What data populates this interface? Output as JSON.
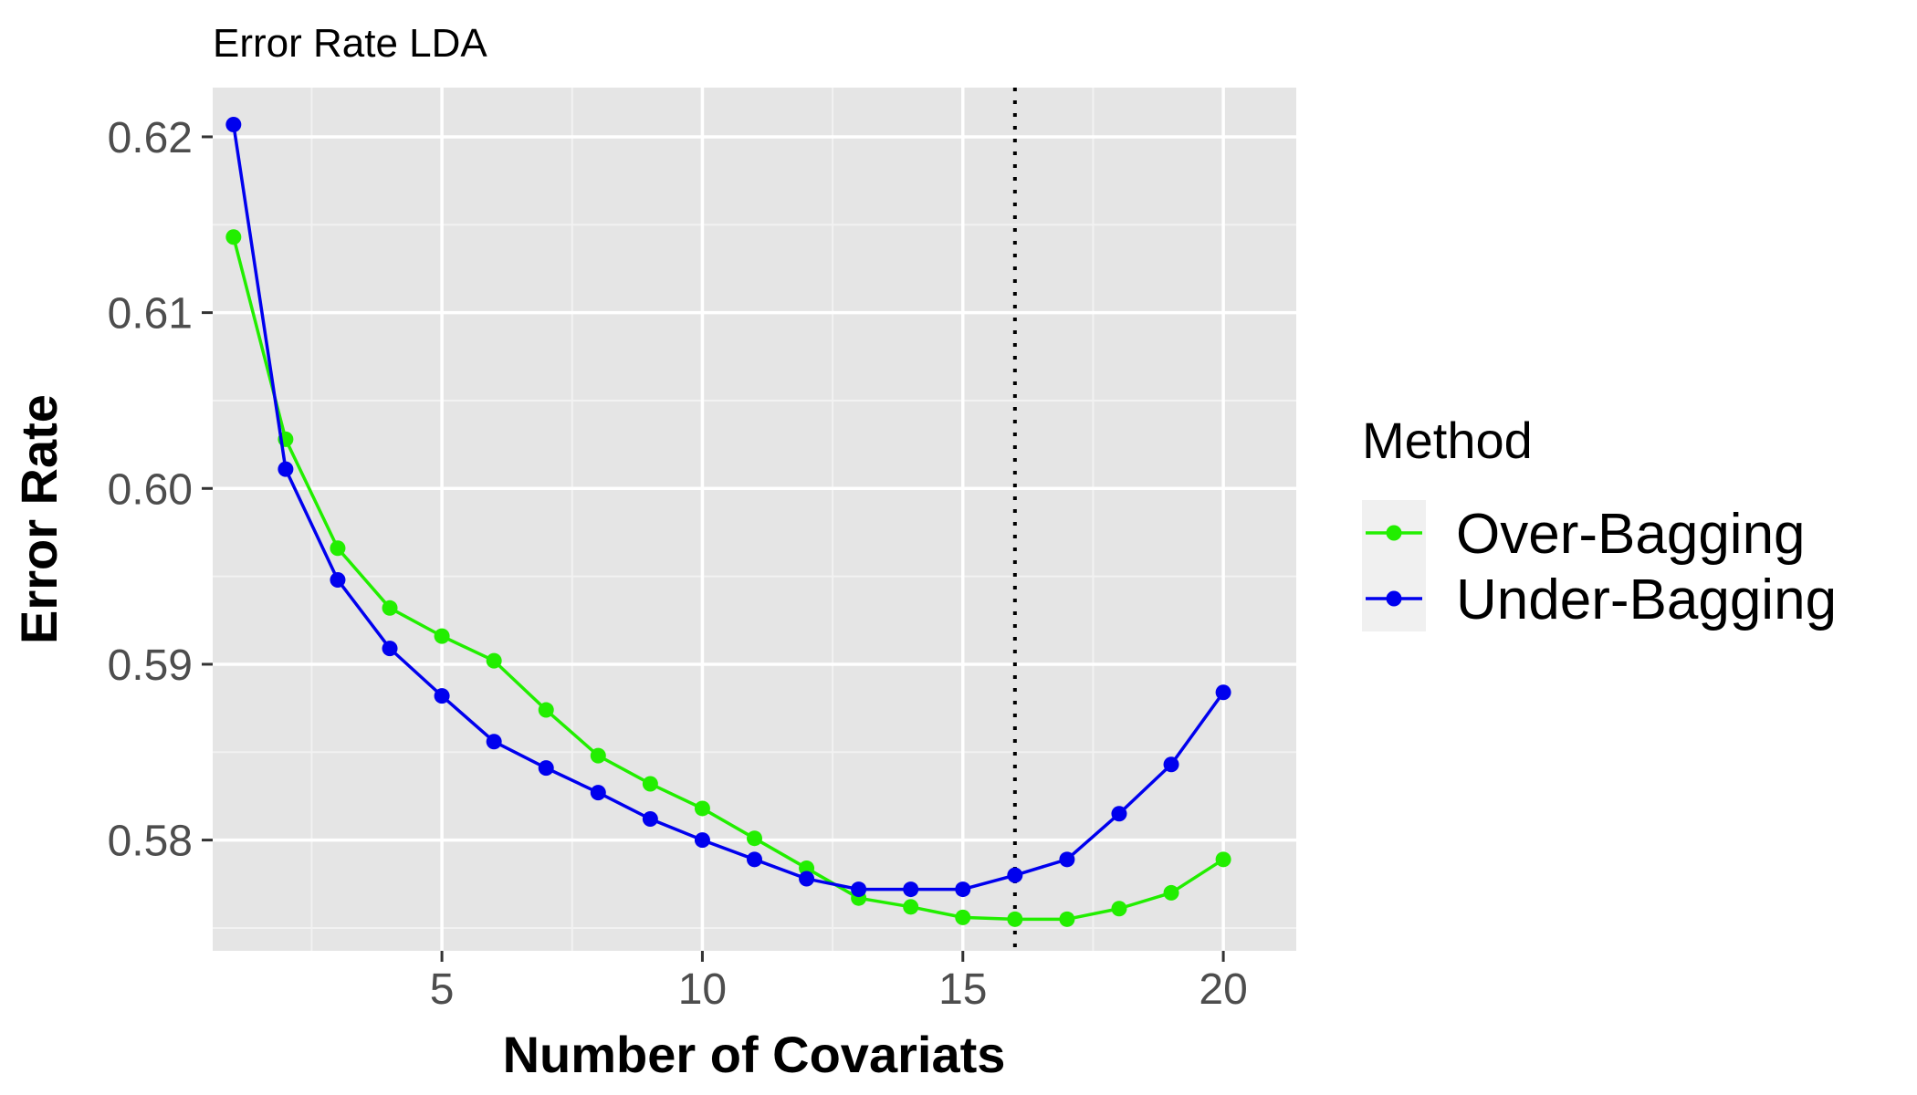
{
  "chart_data": {
    "type": "line",
    "title": "Error Rate LDA",
    "xlabel": "Number of Covariats",
    "ylabel": "Error Rate",
    "xlim": [
      0.6,
      21.4
    ],
    "ylim": [
      0.5737,
      0.6228
    ],
    "x_ticks": [
      5,
      10,
      15,
      20
    ],
    "x_tick_labels": [
      "5",
      "10",
      "15",
      "20"
    ],
    "x_minor_ticks": [
      2.5,
      7.5,
      12.5,
      17.5
    ],
    "y_ticks": [
      0.58,
      0.59,
      0.6,
      0.61,
      0.62
    ],
    "y_tick_labels": [
      "0.58",
      "0.59",
      "0.60",
      "0.61",
      "0.62"
    ],
    "y_minor_ticks": [
      0.575,
      0.585,
      0.595,
      0.605,
      0.615
    ],
    "grid": true,
    "vline": {
      "x": 16,
      "style": "dotted"
    },
    "legend": {
      "title": "Method",
      "position": "right"
    },
    "x": [
      1,
      2,
      3,
      4,
      5,
      6,
      7,
      8,
      9,
      10,
      11,
      12,
      13,
      14,
      15,
      16,
      17,
      18,
      19,
      20
    ],
    "series": [
      {
        "name": "Over-Bagging",
        "color": "#22ee00",
        "values": [
          0.6143,
          0.6028,
          0.5966,
          0.5932,
          0.5916,
          0.5902,
          0.5874,
          0.5848,
          0.5832,
          0.5818,
          0.5801,
          0.5784,
          0.5767,
          0.5762,
          0.5756,
          0.5755,
          0.5755,
          0.5761,
          0.577,
          0.5789
        ]
      },
      {
        "name": "Under-Bagging",
        "color": "#0000ee",
        "values": [
          0.6207,
          0.6011,
          0.5948,
          0.5909,
          0.5882,
          0.5856,
          0.5841,
          0.5827,
          0.5812,
          0.58,
          0.5789,
          0.5778,
          0.5772,
          0.5772,
          0.5772,
          0.578,
          0.5789,
          0.5815,
          0.5843,
          0.5884
        ]
      }
    ]
  }
}
